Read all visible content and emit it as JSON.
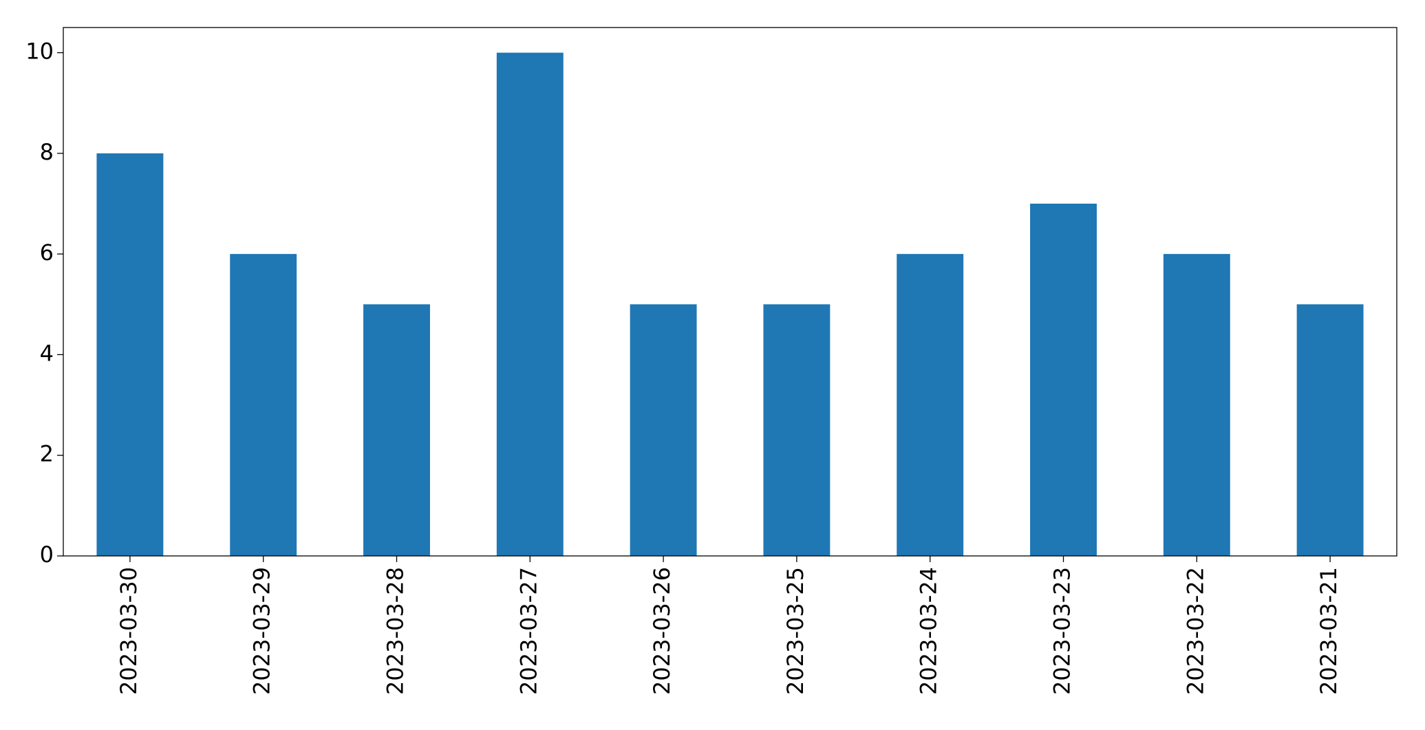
{
  "chart_data": {
    "type": "bar",
    "categories": [
      "2023-03-30",
      "2023-03-29",
      "2023-03-28",
      "2023-03-27",
      "2023-03-26",
      "2023-03-25",
      "2023-03-24",
      "2023-03-23",
      "2023-03-22",
      "2023-03-21"
    ],
    "values": [
      8,
      6,
      5,
      10,
      5,
      5,
      6,
      7,
      6,
      5
    ],
    "color": "#1f77b4",
    "ylim": [
      0,
      10.5
    ],
    "yticks": [
      0,
      2,
      4,
      6,
      8,
      10
    ],
    "grid": false
  }
}
